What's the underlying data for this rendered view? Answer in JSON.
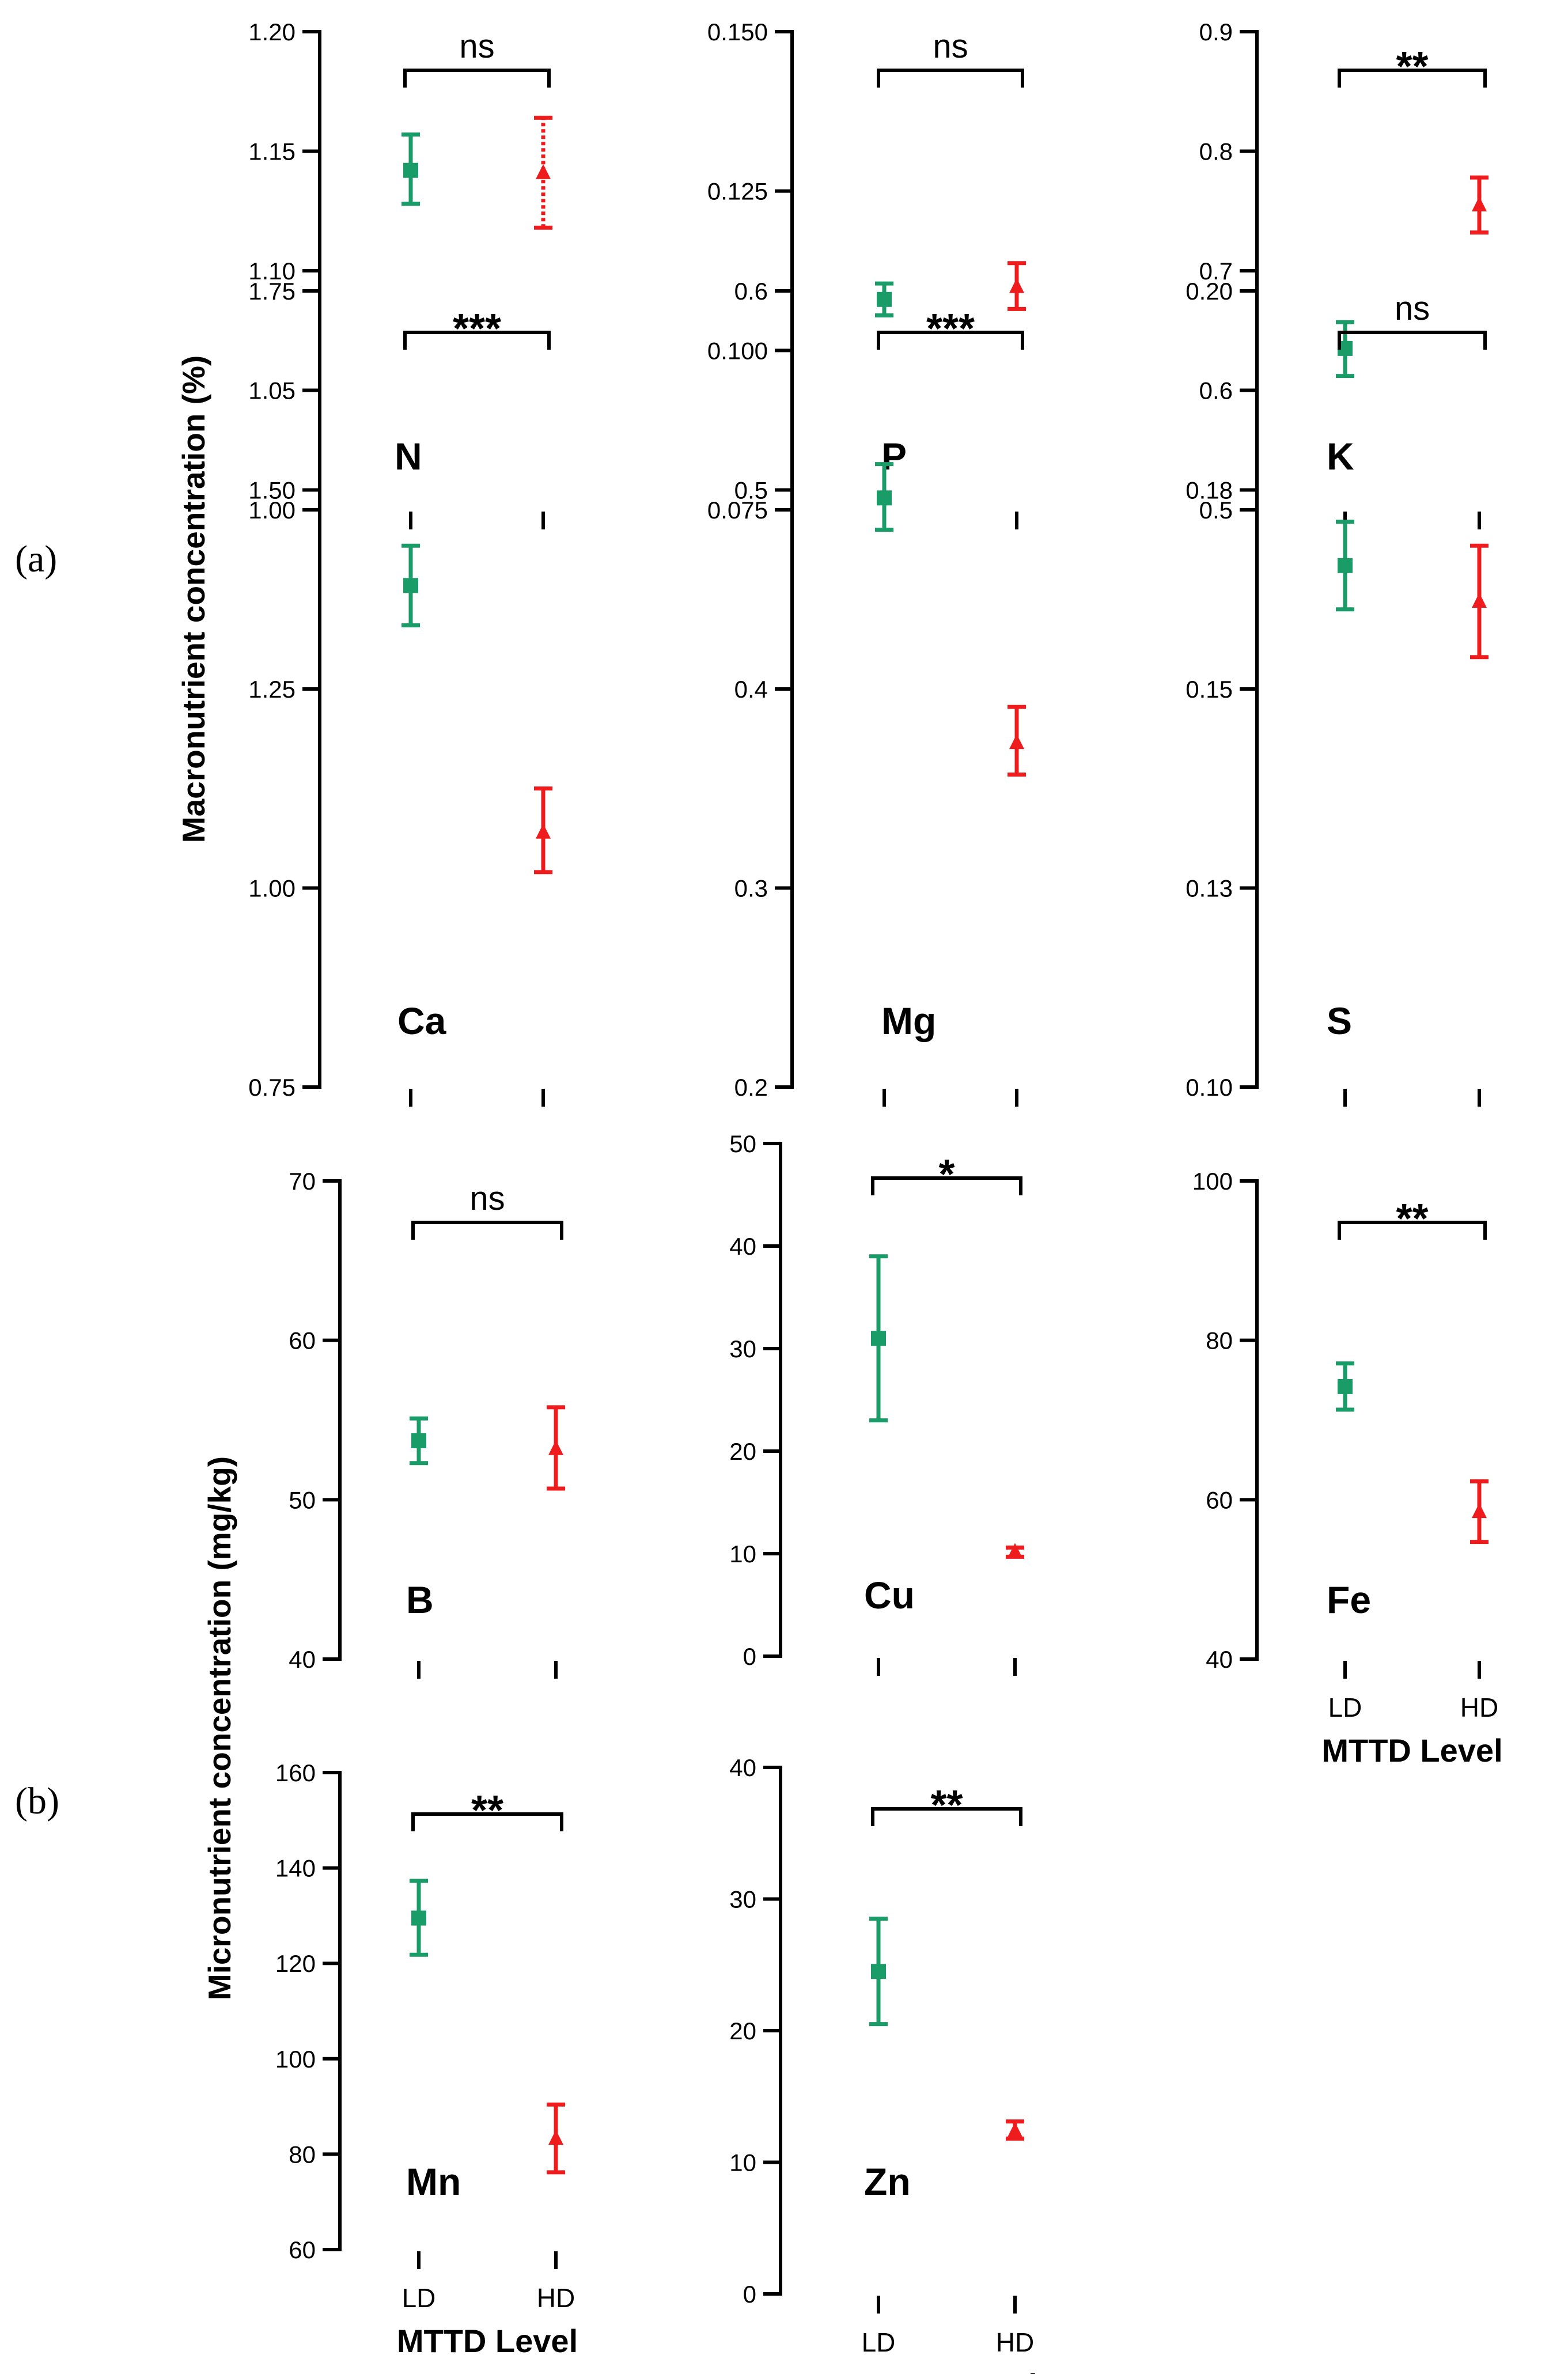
{
  "part_labels": {
    "a": "(a)",
    "b": "(b)"
  },
  "y_titles": {
    "macro": "Macronutrient concentration (%)",
    "micro": "Micronutrient concentration (mg/kg)"
  },
  "x_axis": {
    "categories": [
      "LD",
      "HD"
    ],
    "title": "MTTD Level"
  },
  "colors": {
    "LD": "#1a9c68",
    "HD": "#ee1c1c",
    "axis": "#000000"
  },
  "chart_data": [
    {
      "id": "N",
      "type": "scatter",
      "title": "N",
      "ylim": [
        1.0,
        1.2
      ],
      "yticks": [
        "1.00",
        "1.05",
        "1.10",
        "1.15",
        "1.20"
      ],
      "significance": "ns",
      "series": [
        {
          "name": "LD",
          "marker": "square",
          "mean": 1.142,
          "low": 1.128,
          "high": 1.157
        },
        {
          "name": "HD",
          "marker": "triangle",
          "mean": 1.141,
          "low": 1.118,
          "high": 1.164
        }
      ]
    },
    {
      "id": "P",
      "type": "scatter",
      "title": "P",
      "ylim": [
        0.075,
        0.15
      ],
      "yticks": [
        "0.075",
        "0.100",
        "0.125",
        "0.150"
      ],
      "significance": "ns",
      "series": [
        {
          "name": "LD",
          "marker": "square",
          "mean": 0.108,
          "low": 0.1055,
          "high": 0.1105
        },
        {
          "name": "HD",
          "marker": "triangle",
          "mean": 0.11,
          "low": 0.1065,
          "high": 0.1137
        }
      ]
    },
    {
      "id": "K",
      "type": "scatter",
      "title": "K",
      "ylim": [
        0.5,
        0.9
      ],
      "yticks": [
        "0.5",
        "0.6",
        "0.7",
        "0.8",
        "0.9"
      ],
      "significance": "**",
      "series": [
        {
          "name": "LD",
          "marker": "square",
          "mean": 0.635,
          "low": 0.612,
          "high": 0.657
        },
        {
          "name": "HD",
          "marker": "triangle",
          "mean": 0.755,
          "low": 0.732,
          "high": 0.778
        }
      ]
    },
    {
      "id": "Ca",
      "type": "scatter",
      "title": "Ca",
      "ylim": [
        0.75,
        1.75
      ],
      "yticks": [
        "0.75",
        "1.00",
        "1.25",
        "1.50",
        "1.75"
      ],
      "significance": "***",
      "series": [
        {
          "name": "LD",
          "marker": "square",
          "mean": 1.38,
          "low": 1.33,
          "high": 1.43
        },
        {
          "name": "HD",
          "marker": "triangle",
          "mean": 1.07,
          "low": 1.02,
          "high": 1.125
        }
      ]
    },
    {
      "id": "Mg",
      "type": "scatter",
      "title": "Mg",
      "ylim": [
        0.2,
        0.6
      ],
      "yticks": [
        "0.2",
        "0.3",
        "0.4",
        "0.5",
        "0.6"
      ],
      "significance": "***",
      "series": [
        {
          "name": "LD",
          "marker": "square",
          "mean": 0.496,
          "low": 0.48,
          "high": 0.513
        },
        {
          "name": "HD",
          "marker": "triangle",
          "mean": 0.373,
          "low": 0.357,
          "high": 0.391
        }
      ]
    },
    {
      "id": "S",
      "type": "scatter",
      "title": "S",
      "ylim": [
        0.1,
        0.2
      ],
      "yticks": [
        "0.10",
        "0.13",
        "0.15",
        "0.18",
        "0.20"
      ],
      "significance": "ns",
      "series": [
        {
          "name": "LD",
          "marker": "square",
          "mean": 0.1655,
          "low": 0.16,
          "high": 0.171
        },
        {
          "name": "HD",
          "marker": "triangle",
          "mean": 0.161,
          "low": 0.154,
          "high": 0.168
        }
      ]
    },
    {
      "id": "B",
      "type": "scatter",
      "title": "B",
      "ylim": [
        40,
        70
      ],
      "yticks": [
        "40",
        "50",
        "60",
        "70"
      ],
      "significance": "ns",
      "series": [
        {
          "name": "LD",
          "marker": "square",
          "mean": 53.7,
          "low": 52.3,
          "high": 55.1
        },
        {
          "name": "HD",
          "marker": "triangle",
          "mean": 53.2,
          "low": 50.7,
          "high": 55.8
        }
      ]
    },
    {
      "id": "Cu",
      "type": "scatter",
      "title": "Cu",
      "ylim": [
        0,
        50
      ],
      "yticks": [
        "0",
        "10",
        "20",
        "30",
        "40",
        "50"
      ],
      "significance": "*",
      "series": [
        {
          "name": "LD",
          "marker": "square",
          "mean": 31.0,
          "low": 23.0,
          "high": 39.0
        },
        {
          "name": "HD",
          "marker": "triangle",
          "mean": 10.2,
          "low": 9.7,
          "high": 10.6
        }
      ]
    },
    {
      "id": "Fe",
      "type": "scatter",
      "title": "Fe",
      "ylim": [
        40,
        100
      ],
      "yticks": [
        "40",
        "60",
        "80",
        "100"
      ],
      "significance": "**",
      "series": [
        {
          "name": "LD",
          "marker": "square",
          "mean": 74.2,
          "low": 71.3,
          "high": 77.1
        },
        {
          "name": "HD",
          "marker": "triangle",
          "mean": 58.5,
          "low": 54.7,
          "high": 62.3
        }
      ]
    },
    {
      "id": "Mn",
      "type": "scatter",
      "title": "Mn",
      "ylim": [
        60,
        160
      ],
      "yticks": [
        "60",
        "80",
        "100",
        "120",
        "140",
        "160"
      ],
      "significance": "**",
      "series": [
        {
          "name": "LD",
          "marker": "square",
          "mean": 129.5,
          "low": 121.8,
          "high": 137.3
        },
        {
          "name": "HD",
          "marker": "triangle",
          "mean": 83.3,
          "low": 76.2,
          "high": 90.4
        }
      ]
    },
    {
      "id": "Zn",
      "type": "scatter",
      "title": "Zn",
      "ylim": [
        0,
        40
      ],
      "yticks": [
        "0",
        "10",
        "20",
        "30",
        "40"
      ],
      "significance": "**",
      "series": [
        {
          "name": "LD",
          "marker": "square",
          "mean": 24.5,
          "low": 20.5,
          "high": 28.5
        },
        {
          "name": "HD",
          "marker": "triangle",
          "mean": 12.4,
          "low": 11.8,
          "high": 13.1
        }
      ]
    }
  ]
}
